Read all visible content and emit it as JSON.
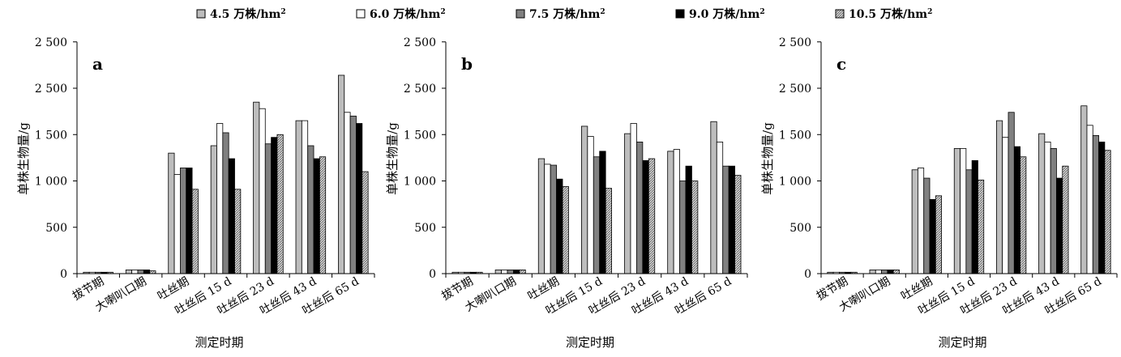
{
  "legend": [
    {
      "label": "4.5 万株/hm",
      "sup": "2",
      "fill": "#bdbdbd",
      "pattern": "none"
    },
    {
      "label": "6.0 万株/hm",
      "sup": "2",
      "fill": "#ffffff",
      "pattern": "none"
    },
    {
      "label": "7.5 万株/hm",
      "sup": "2",
      "fill": "#808080",
      "pattern": "none"
    },
    {
      "label": "9.0 万株/hm",
      "sup": "2",
      "fill": "#000000",
      "pattern": "none"
    },
    {
      "label": "10.5 万株/hm",
      "sup": "2",
      "fill": "#a0a0a0",
      "pattern": "hatch"
    }
  ],
  "chart_data": [
    {
      "type": "bar",
      "panel": "a",
      "xlabel": "测定时期",
      "ylabel": "单株生物量/g",
      "yticks": [
        "0",
        "500",
        "1 000",
        "1 500",
        "2 500",
        "2 500"
      ],
      "ylim": [
        0,
        2500
      ],
      "categories": [
        "拔节期",
        "大喇叭口期",
        "吐丝期",
        "吐丝后 15 d",
        "吐丝后 23 d",
        "吐丝后 43 d",
        "吐丝后 65 d"
      ],
      "series": [
        {
          "name": "4.5 万株/hm2",
          "values": [
            15,
            40,
            1300,
            1380,
            1850,
            1650,
            2140
          ]
        },
        {
          "name": "6.0 万株/hm2",
          "values": [
            15,
            40,
            1070,
            1620,
            1780,
            1650,
            1740
          ]
        },
        {
          "name": "7.5 万株/hm2",
          "values": [
            15,
            40,
            1140,
            1520,
            1400,
            1380,
            1700
          ]
        },
        {
          "name": "9.0 万株/hm2",
          "values": [
            15,
            40,
            1140,
            1240,
            1470,
            1240,
            1620
          ]
        },
        {
          "name": "10.5 万株/hm2",
          "values": [
            15,
            30,
            910,
            910,
            1500,
            1260,
            1100
          ]
        }
      ]
    },
    {
      "type": "bar",
      "panel": "b",
      "xlabel": "测定时期",
      "ylabel": "单株生物量/g",
      "yticks": [
        "0",
        "500",
        "1 000",
        "1 500",
        "2 500",
        "2 500"
      ],
      "ylim": [
        0,
        2500
      ],
      "categories": [
        "拔节期",
        "大喇叭口期",
        "吐丝期",
        "吐丝后 15 d",
        "吐丝后 23 d",
        "吐丝后 43 d",
        "吐丝后 65 d"
      ],
      "series": [
        {
          "name": "4.5 万株/hm2",
          "values": [
            15,
            40,
            1240,
            1590,
            1510,
            1320,
            1640
          ]
        },
        {
          "name": "6.0 万株/hm2",
          "values": [
            15,
            40,
            1180,
            1480,
            1620,
            1340,
            1420
          ]
        },
        {
          "name": "7.5 万株/hm2",
          "values": [
            15,
            40,
            1170,
            1260,
            1420,
            1000,
            1160
          ]
        },
        {
          "name": "9.0 万株/hm2",
          "values": [
            15,
            40,
            1020,
            1320,
            1220,
            1160,
            1160
          ]
        },
        {
          "name": "10.5 万株/hm2",
          "values": [
            15,
            40,
            940,
            920,
            1240,
            1000,
            1060
          ]
        }
      ]
    },
    {
      "type": "bar",
      "panel": "c",
      "xlabel": "测定时期",
      "ylabel": "单株生物量/g",
      "yticks": [
        "0",
        "500",
        "1 000",
        "1 500",
        "2 500",
        "2 500"
      ],
      "ylim": [
        0,
        2500
      ],
      "categories": [
        "拔节期",
        "大喇叭口期",
        "吐丝期",
        "吐丝后 15 d",
        "吐丝后 23 d",
        "吐丝后 43 d",
        "吐丝后 65 d"
      ],
      "series": [
        {
          "name": "4.5 万株/hm2",
          "values": [
            15,
            40,
            1120,
            1350,
            1650,
            1510,
            1810
          ]
        },
        {
          "name": "6.0 万株/hm2",
          "values": [
            15,
            40,
            1140,
            1350,
            1470,
            1420,
            1600
          ]
        },
        {
          "name": "7.5 万株/hm2",
          "values": [
            15,
            40,
            1030,
            1120,
            1740,
            1350,
            1490
          ]
        },
        {
          "name": "9.0 万株/hm2",
          "values": [
            15,
            40,
            800,
            1220,
            1370,
            1030,
            1420
          ]
        },
        {
          "name": "10.5 万株/hm2",
          "values": [
            15,
            40,
            840,
            1010,
            1260,
            1160,
            1330
          ]
        }
      ]
    }
  ]
}
